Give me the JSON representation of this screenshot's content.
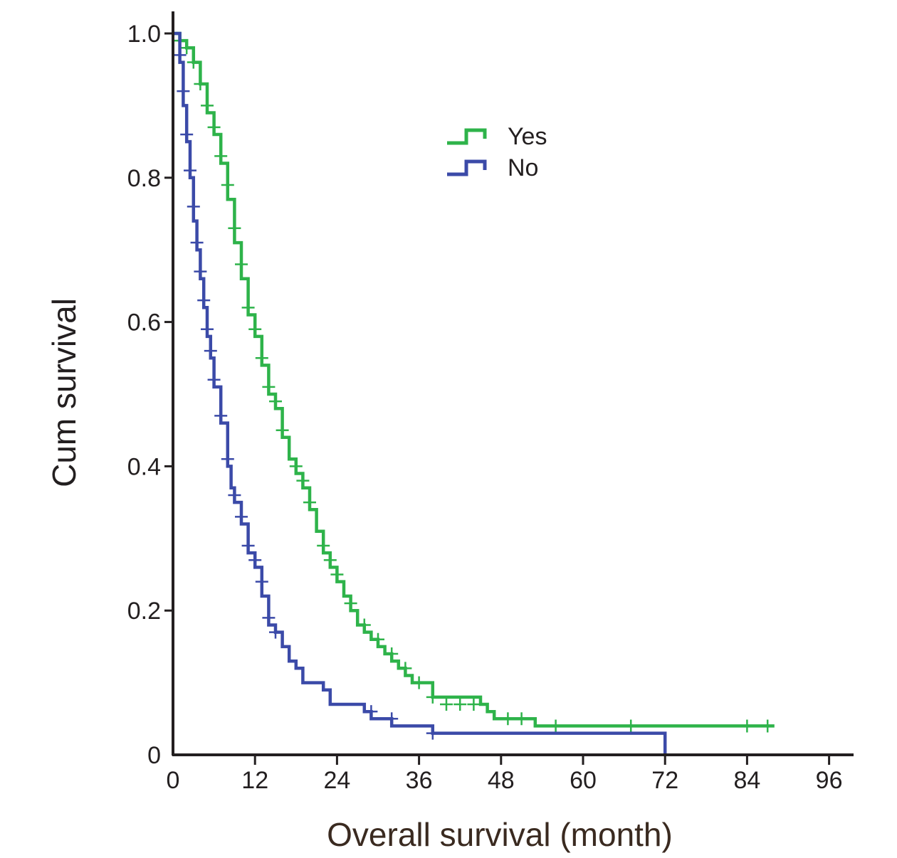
{
  "chart_data": {
    "type": "line",
    "subtype": "kaplan-meier",
    "title": "",
    "xlabel": "Overall survival (month)",
    "ylabel": "Cum survival",
    "xlim": [
      0,
      100
    ],
    "ylim": [
      0,
      1.0
    ],
    "x_ticks": [
      0,
      12,
      24,
      36,
      48,
      60,
      72,
      84,
      96
    ],
    "x_tick_labels": [
      "0",
      "12",
      "24",
      "36",
      "48",
      "60",
      "72",
      "84",
      "96"
    ],
    "y_ticks": [
      0,
      0.2,
      0.4,
      0.6,
      0.8,
      1.0
    ],
    "y_tick_labels": [
      "0",
      "0.2",
      "0.4",
      "0.6",
      "0.8",
      "1.0"
    ],
    "grid": false,
    "legend_position": "top-center",
    "series": [
      {
        "name": "Yes",
        "color": "#2eb34a",
        "steps": [
          [
            0,
            1.0
          ],
          [
            1,
            0.99
          ],
          [
            2,
            0.98
          ],
          [
            3,
            0.96
          ],
          [
            4,
            0.93
          ],
          [
            5,
            0.89
          ],
          [
            6,
            0.86
          ],
          [
            7,
            0.82
          ],
          [
            8,
            0.77
          ],
          [
            9,
            0.71
          ],
          [
            10,
            0.66
          ],
          [
            11,
            0.61
          ],
          [
            12,
            0.58
          ],
          [
            13,
            0.54
          ],
          [
            14,
            0.5
          ],
          [
            15,
            0.48
          ],
          [
            16,
            0.44
          ],
          [
            17,
            0.41
          ],
          [
            18,
            0.39
          ],
          [
            19,
            0.37
          ],
          [
            20,
            0.34
          ],
          [
            21,
            0.31
          ],
          [
            22,
            0.28
          ],
          [
            23,
            0.26
          ],
          [
            24,
            0.24
          ],
          [
            25,
            0.22
          ],
          [
            26,
            0.2
          ],
          [
            27,
            0.18
          ],
          [
            28,
            0.17
          ],
          [
            29,
            0.16
          ],
          [
            30,
            0.15
          ],
          [
            31,
            0.14
          ],
          [
            32,
            0.13
          ],
          [
            33,
            0.12
          ],
          [
            34,
            0.11
          ],
          [
            35,
            0.1
          ],
          [
            38,
            0.08
          ],
          [
            45,
            0.07
          ],
          [
            46,
            0.06
          ],
          [
            47,
            0.05
          ],
          [
            53,
            0.04
          ],
          [
            88,
            0.04
          ]
        ],
        "censored": [
          [
            1,
            0.99
          ],
          [
            2,
            0.98
          ],
          [
            3,
            0.96
          ],
          [
            4,
            0.93
          ],
          [
            5,
            0.9
          ],
          [
            6,
            0.87
          ],
          [
            7,
            0.83
          ],
          [
            8,
            0.79
          ],
          [
            9,
            0.73
          ],
          [
            10,
            0.68
          ],
          [
            11,
            0.62
          ],
          [
            12,
            0.59
          ],
          [
            13,
            0.55
          ],
          [
            14,
            0.51
          ],
          [
            15,
            0.49
          ],
          [
            16,
            0.45
          ],
          [
            18,
            0.4
          ],
          [
            19,
            0.38
          ],
          [
            20,
            0.35
          ],
          [
            22,
            0.29
          ],
          [
            23,
            0.27
          ],
          [
            24,
            0.25
          ],
          [
            26,
            0.21
          ],
          [
            28,
            0.18
          ],
          [
            30,
            0.16
          ],
          [
            32,
            0.14
          ],
          [
            34,
            0.12
          ],
          [
            36,
            0.1
          ],
          [
            38,
            0.08
          ],
          [
            40,
            0.07
          ],
          [
            42,
            0.07
          ],
          [
            44,
            0.07
          ],
          [
            49,
            0.05
          ],
          [
            51,
            0.05
          ],
          [
            56,
            0.04
          ],
          [
            67,
            0.04
          ],
          [
            84,
            0.04
          ],
          [
            87,
            0.04
          ]
        ]
      },
      {
        "name": "No",
        "color": "#3b4aa8",
        "steps": [
          [
            0,
            1.0
          ],
          [
            1,
            0.96
          ],
          [
            1.5,
            0.9
          ],
          [
            2,
            0.85
          ],
          [
            2.5,
            0.8
          ],
          [
            3,
            0.74
          ],
          [
            3.5,
            0.7
          ],
          [
            4,
            0.66
          ],
          [
            4.5,
            0.62
          ],
          [
            5,
            0.58
          ],
          [
            5.5,
            0.55
          ],
          [
            6,
            0.51
          ],
          [
            7,
            0.46
          ],
          [
            8,
            0.4
          ],
          [
            8.5,
            0.37
          ],
          [
            9,
            0.35
          ],
          [
            10,
            0.32
          ],
          [
            11,
            0.28
          ],
          [
            12,
            0.26
          ],
          [
            13,
            0.22
          ],
          [
            14,
            0.18
          ],
          [
            15,
            0.17
          ],
          [
            16,
            0.15
          ],
          [
            17,
            0.13
          ],
          [
            18,
            0.12
          ],
          [
            19,
            0.1
          ],
          [
            22,
            0.09
          ],
          [
            23,
            0.07
          ],
          [
            28,
            0.06
          ],
          [
            29,
            0.05
          ],
          [
            32,
            0.04
          ],
          [
            38,
            0.03
          ],
          [
            72,
            0.03
          ],
          [
            72,
            0.0
          ]
        ],
        "censored": [
          [
            0,
            1.0
          ],
          [
            1,
            0.97
          ],
          [
            1.5,
            0.92
          ],
          [
            2,
            0.86
          ],
          [
            2.5,
            0.81
          ],
          [
            3,
            0.76
          ],
          [
            3.5,
            0.71
          ],
          [
            4,
            0.67
          ],
          [
            4.5,
            0.63
          ],
          [
            5,
            0.59
          ],
          [
            5.5,
            0.56
          ],
          [
            6,
            0.52
          ],
          [
            7,
            0.47
          ],
          [
            8,
            0.41
          ],
          [
            9,
            0.36
          ],
          [
            10,
            0.33
          ],
          [
            11,
            0.29
          ],
          [
            12,
            0.27
          ],
          [
            13,
            0.24
          ],
          [
            14,
            0.19
          ],
          [
            15,
            0.17
          ],
          [
            29,
            0.06
          ],
          [
            32,
            0.05
          ],
          [
            38,
            0.03
          ]
        ]
      }
    ]
  }
}
